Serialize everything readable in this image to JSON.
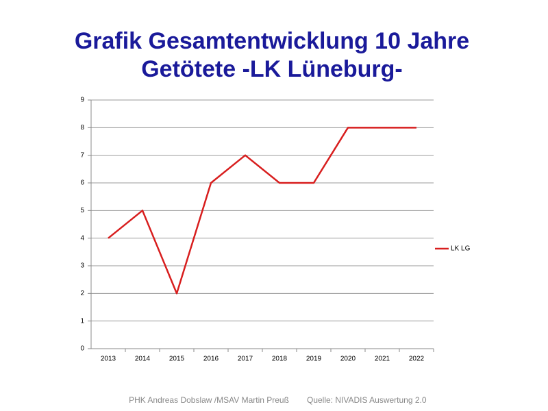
{
  "chart_data": {
    "type": "line",
    "title": "Grafik Gesamtentwicklung 10 Jahre",
    "subtitle": "Getötete -LK Lüneburg-",
    "categories": [
      "2013",
      "2014",
      "2015",
      "2016",
      "2017",
      "2018",
      "2019",
      "2020",
      "2021",
      "2022"
    ],
    "series": [
      {
        "name": "LK LG",
        "color": "#d81e1e",
        "values": [
          4,
          5,
          2,
          6,
          7,
          6,
          6,
          8,
          8,
          8
        ]
      }
    ],
    "ylim": [
      0,
      9
    ],
    "yticks": [
      0,
      1,
      2,
      3,
      4,
      5,
      6,
      7,
      8,
      9
    ],
    "grid": true,
    "legend": "right",
    "footer": [
      "PHK Andreas Dobslaw /MSAV Martin Preuß",
      "Quelle: NIVADIS Auswertung 2.0"
    ]
  }
}
